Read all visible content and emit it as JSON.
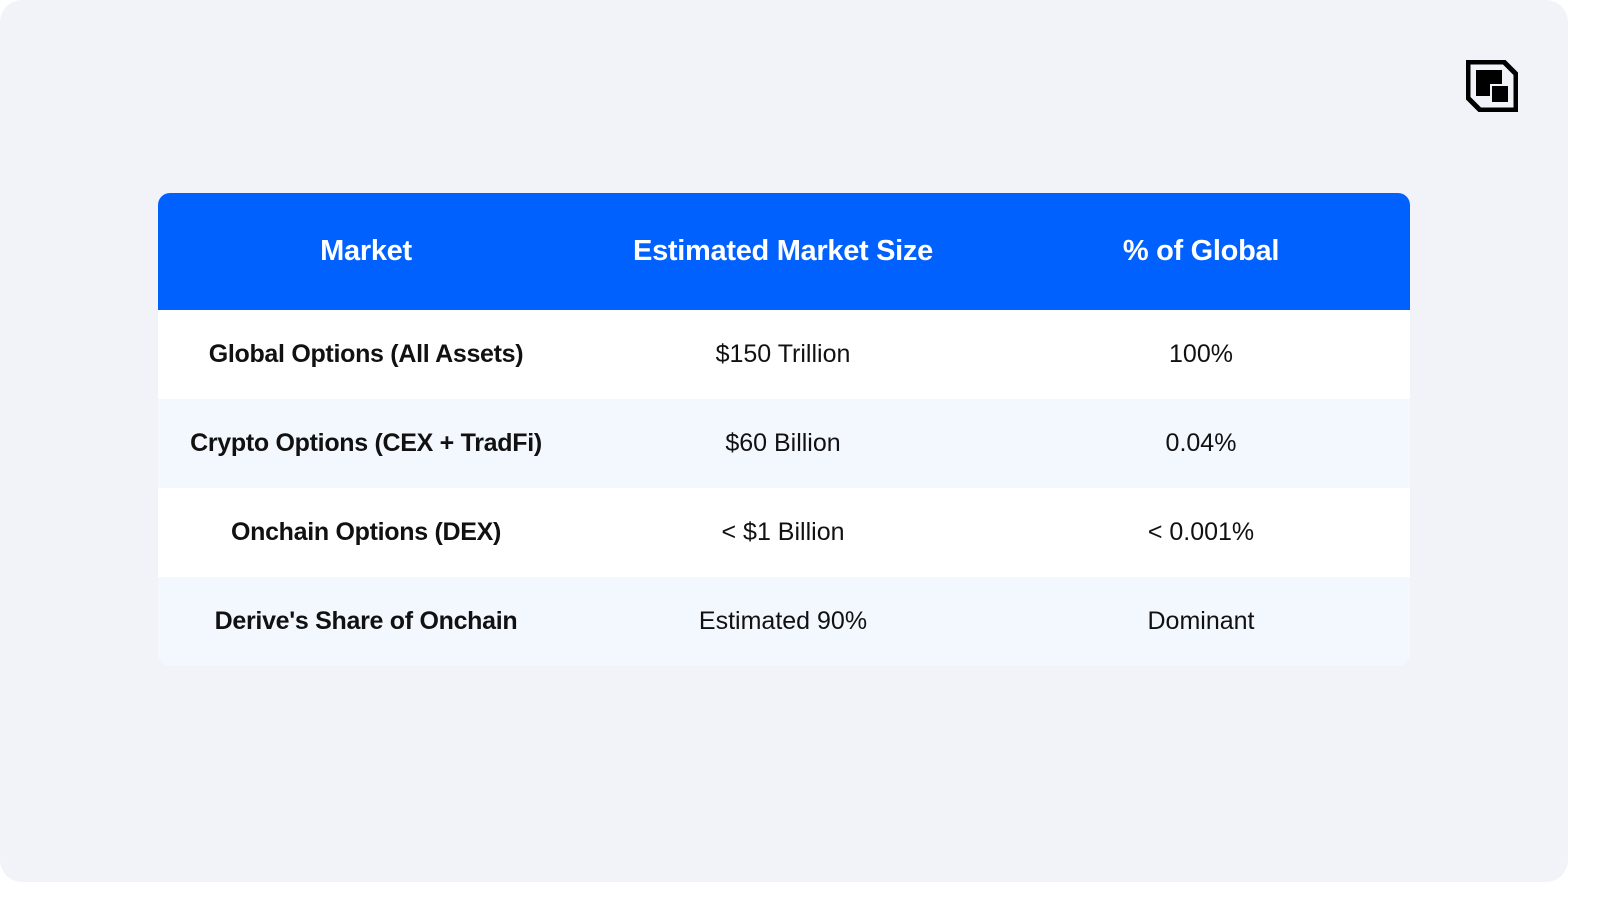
{
  "brand": {
    "logo_icon": "derive-logo-icon",
    "header_color": "#0061fe",
    "text_color": "#111111"
  },
  "chart_data": {
    "type": "table",
    "columns": [
      "Market",
      "Estimated Market Size",
      "% of Global"
    ],
    "rows": [
      [
        "Global Options (All Assets)",
        "$150 Trillion",
        "100%"
      ],
      [
        "Crypto Options (CEX + TradFi)",
        "$60 Billion",
        "0.04%"
      ],
      [
        "Onchain Options (DEX)",
        "< $1 Billion",
        "< 0.001%"
      ],
      [
        "Derive's Share of Onchain",
        "Estimated 90%",
        "Dominant"
      ]
    ]
  }
}
